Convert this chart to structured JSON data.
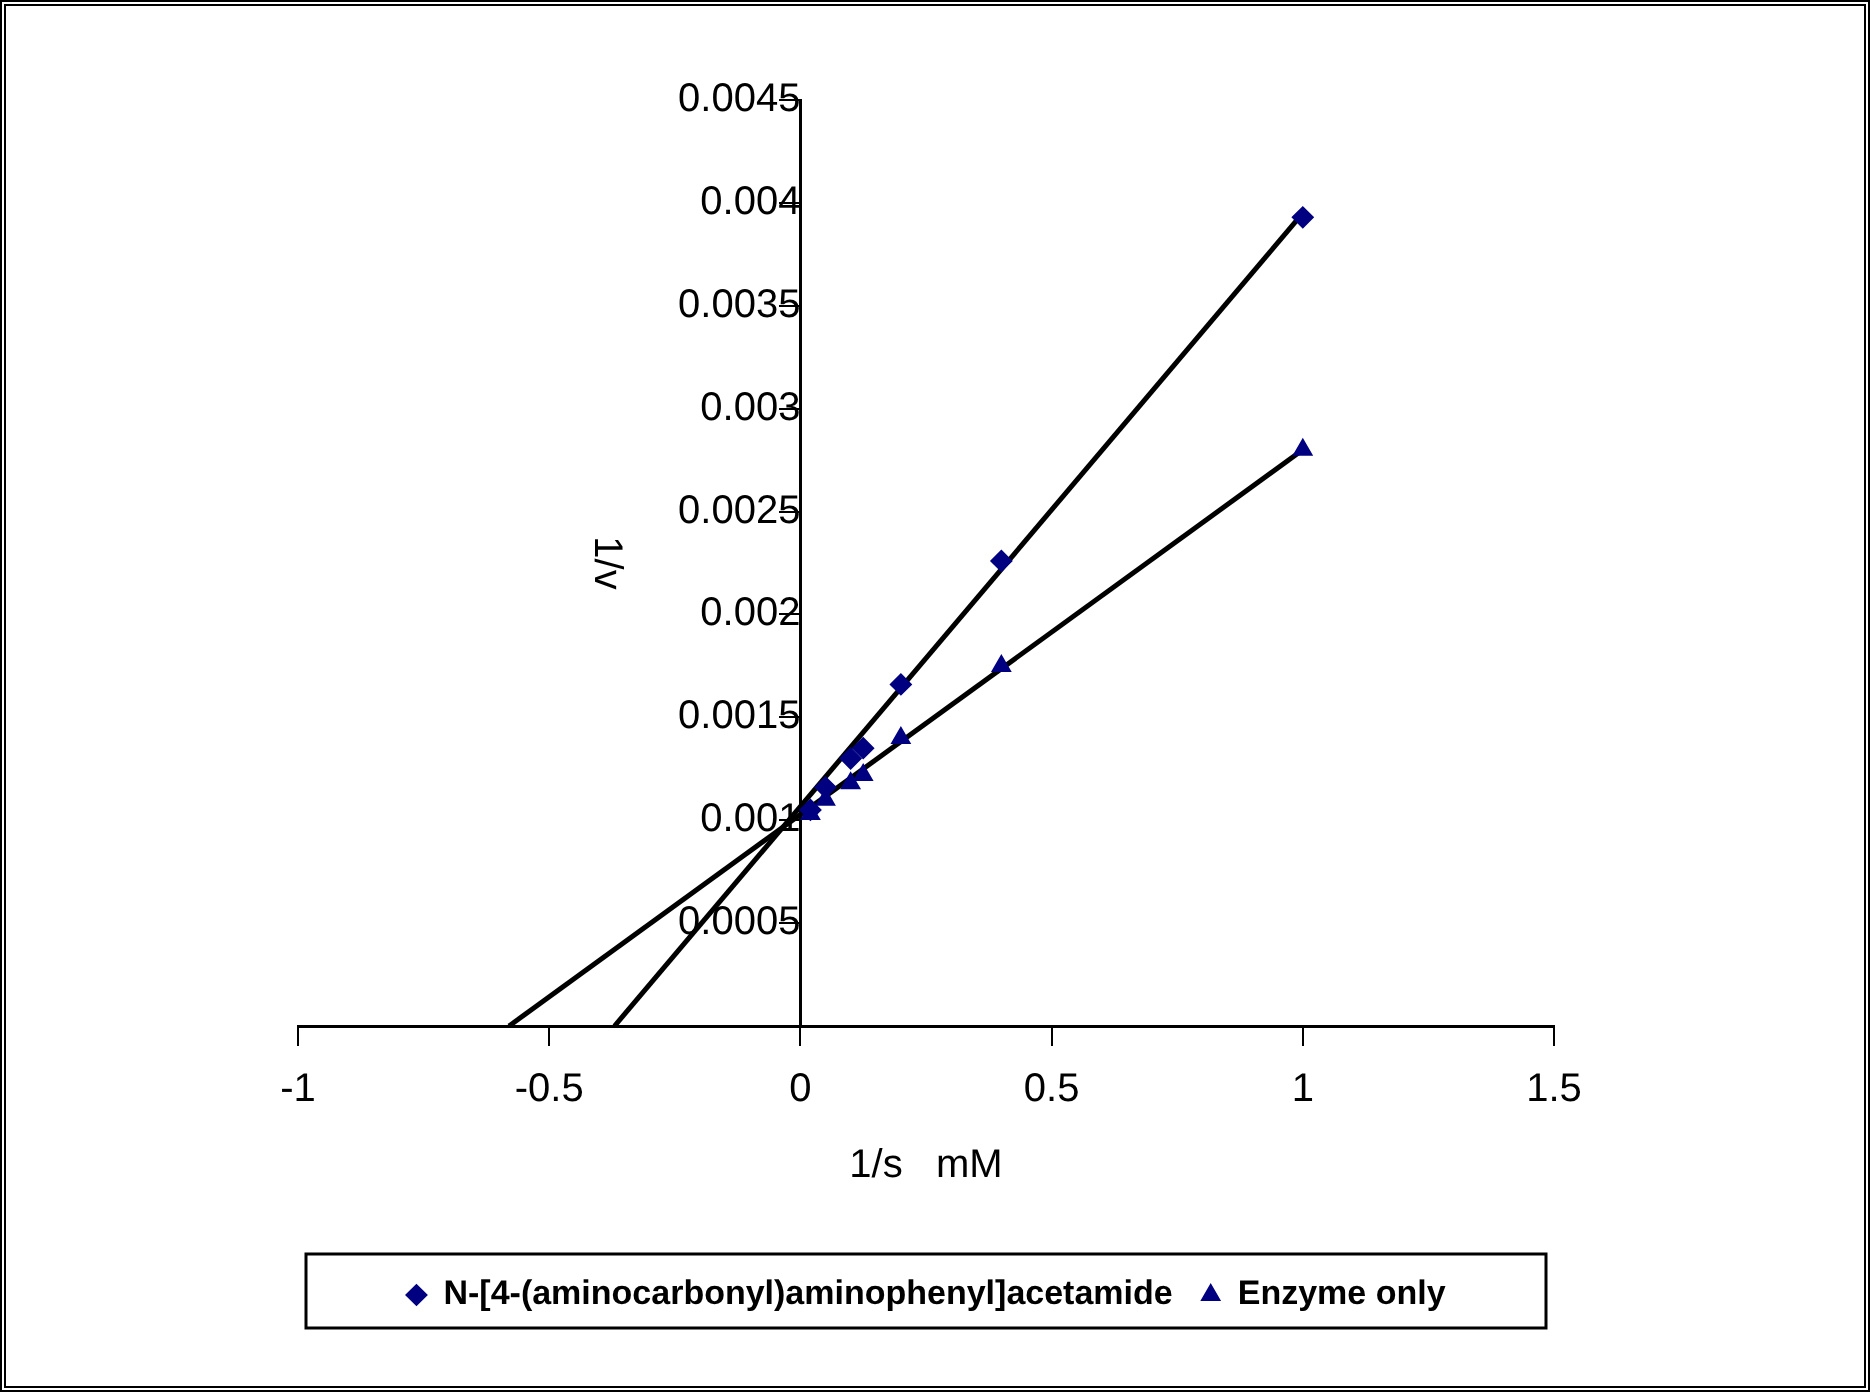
{
  "chart_data": {
    "type": "scatter",
    "xlabel": "1/s   mM",
    "ylabel": "1/v",
    "xlim": [
      -1,
      1.5
    ],
    "xticks": [
      -1,
      -0.5,
      0,
      0.5,
      1,
      1.5
    ],
    "ylim": [
      0,
      0.0045
    ],
    "yticks": [
      0.0005,
      0.001,
      0.0015,
      0.002,
      0.0025,
      0.003,
      0.0035,
      0.004,
      0.0045
    ],
    "grid": false,
    "legend": "bottom",
    "series": [
      {
        "name": "N-[4-(aminocarbonyl)aminophenyl]acetamide",
        "color": "#000080",
        "marker": "diamond",
        "x": [
          1,
          0.4,
          0.2,
          0.125,
          0.1,
          0.05,
          0.02
        ],
        "values": [
          0.00393,
          0.00226,
          0.00166,
          0.00135,
          0.0013,
          0.00116,
          0.00105
        ]
      },
      {
        "name": "Enzyme only",
        "color": "#000080",
        "marker": "triangle",
        "x": [
          1,
          0.4,
          0.2,
          0.125,
          0.1,
          0.05,
          0.02
        ],
        "values": [
          0.0028,
          0.00175,
          0.0014,
          0.00122,
          0.00118,
          0.0011,
          0.00103
        ]
      },
      {
        "type": "line",
        "color": "#000000",
        "marker": "none",
        "line_style": "solid",
        "x": [
          -0.37,
          1
        ],
        "values": [
          0,
          0.00395
        ]
      },
      {
        "type": "line",
        "color": "#000000",
        "marker": "none",
        "line_style": "solid",
        "x": [
          -0.58,
          1
        ],
        "values": [
          0,
          0.0028
        ]
      }
    ]
  }
}
